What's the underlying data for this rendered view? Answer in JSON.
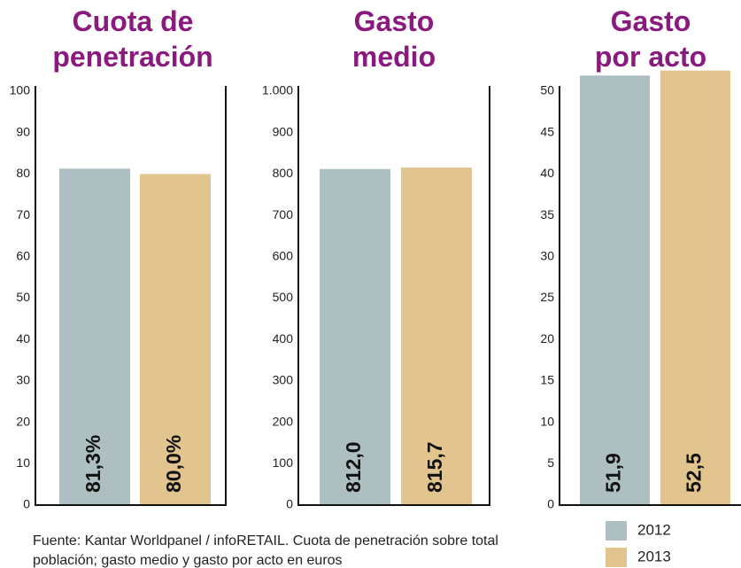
{
  "chart_data": [
    {
      "type": "bar",
      "title": "Cuota de penetración",
      "values": [
        81.3,
        80.0
      ],
      "value_labels": [
        "81,3%",
        "80,0%"
      ],
      "ylim": [
        0,
        100
      ],
      "yticks": [
        0,
        10,
        20,
        30,
        40,
        50,
        60,
        70,
        80,
        90,
        100
      ]
    },
    {
      "type": "bar",
      "title": "Gasto medio",
      "values": [
        812.0,
        815.7
      ],
      "value_labels": [
        "812,0",
        "815,7"
      ],
      "ylim": [
        0,
        1000
      ],
      "yticks": [
        0,
        100,
        200,
        300,
        400,
        500,
        600,
        700,
        800,
        900,
        {
          "value": 1000,
          "label": "1.000"
        }
      ]
    },
    {
      "type": "bar",
      "title": "Gasto por acto",
      "values": [
        51.9,
        52.5
      ],
      "value_labels": [
        "51,9",
        "52,5"
      ],
      "ylim": [
        0,
        50
      ],
      "yticks": [
        0,
        5,
        10,
        15,
        20,
        25,
        30,
        35,
        40,
        45,
        50
      ]
    }
  ],
  "legend": [
    {
      "name": "2012",
      "color": "#adbfc1"
    },
    {
      "name": "2013",
      "color": "#e2c48e"
    }
  ],
  "note": "Fuente: Kantar Worldpanel / infoRETAIL. Cuota de penetración sobre total población; gasto medio y gasto por acto en euros"
}
